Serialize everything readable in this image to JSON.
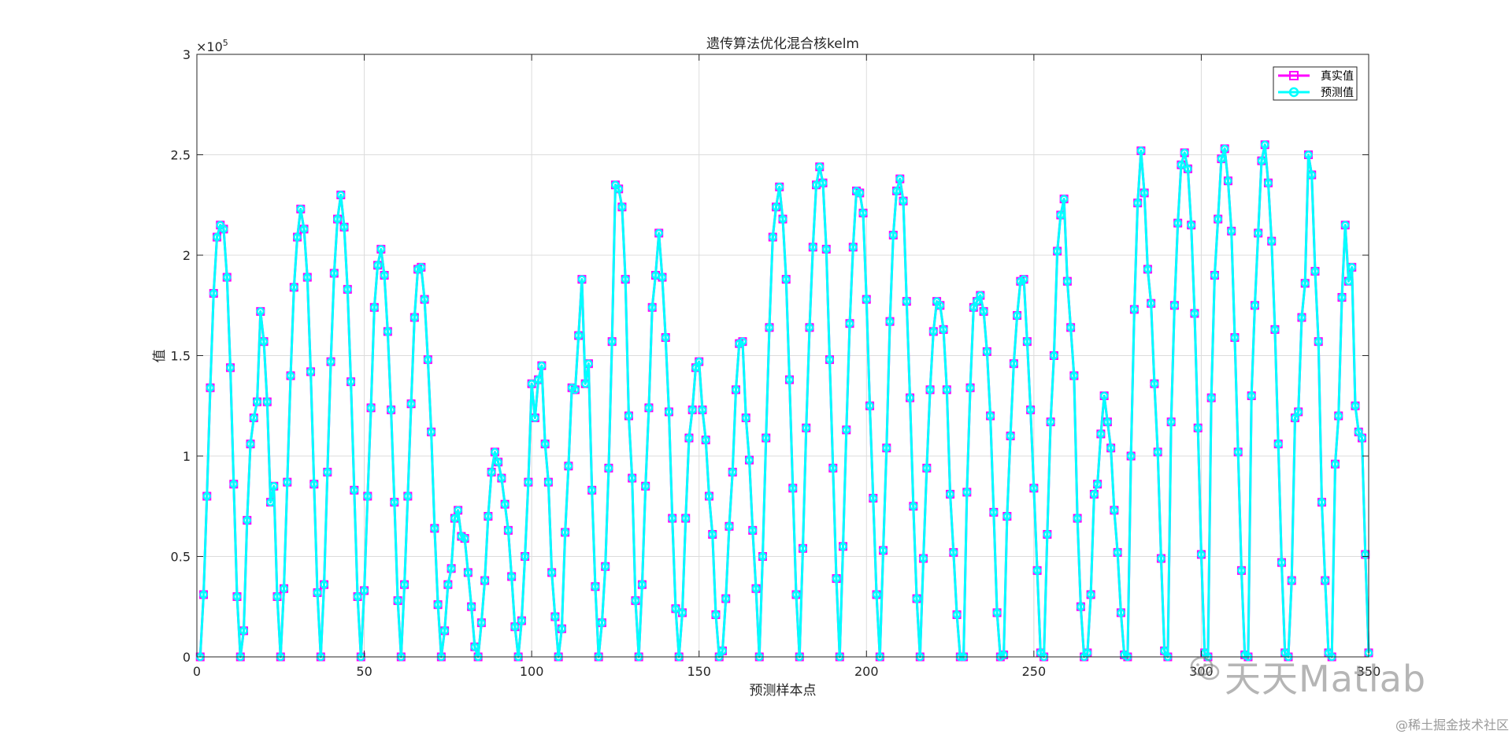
{
  "chart_data": {
    "type": "line",
    "title": "遗传算法优化混合核kelm",
    "xlabel": "预测样本点",
    "ylabel": "值",
    "y_exponent_label": "×10",
    "y_exponent_power": "5",
    "xlim": [
      0,
      350
    ],
    "ylim": [
      0,
      3
    ],
    "xticks": [
      0,
      50,
      100,
      150,
      200,
      250,
      300,
      350
    ],
    "xtick_labels": [
      "0",
      "50",
      "100",
      "150",
      "200",
      "250",
      "300",
      "350"
    ],
    "yticks": [
      0,
      0.5,
      1,
      1.5,
      2,
      2.5,
      3
    ],
    "ytick_labels": [
      "0",
      "0.5",
      "1",
      "1.5",
      "2",
      "2.5",
      "3"
    ],
    "grid": true,
    "legend_position": "top-right",
    "series": [
      {
        "name": "真实值",
        "color": "#ff00ff",
        "marker": "square"
      },
      {
        "name": "预测值",
        "color": "#00ffff",
        "marker": "circle"
      }
    ],
    "y_values": [
      0,
      0.31,
      0.8,
      1.34,
      1.81,
      2.09,
      2.15,
      2.13,
      1.89,
      1.44,
      0.86,
      0.3,
      0,
      0.13,
      0.68,
      1.06,
      1.19,
      1.27,
      1.72,
      1.57,
      1.27,
      0.77,
      0.85,
      0.3,
      0,
      0.34,
      0.87,
      1.4,
      1.84,
      2.09,
      2.23,
      2.13,
      1.89,
      1.42,
      0.86,
      0.32,
      0,
      0.36,
      0.92,
      1.47,
      1.91,
      2.18,
      2.3,
      2.14,
      1.83,
      1.37,
      0.83,
      0.3,
      0,
      0.33,
      0.8,
      1.24,
      1.74,
      1.95,
      2.03,
      1.9,
      1.62,
      1.23,
      0.77,
      0.28,
      0,
      0.36,
      0.8,
      1.26,
      1.69,
      1.93,
      1.94,
      1.78,
      1.48,
      1.12,
      0.64,
      0.26,
      0,
      0.13,
      0.36,
      0.44,
      0.69,
      0.73,
      0.6,
      0.59,
      0.42,
      0.25,
      0.05,
      0,
      0.17,
      0.38,
      0.7,
      0.92,
      1.02,
      0.97,
      0.89,
      0.76,
      0.63,
      0.4,
      0.15,
      0,
      0.18,
      0.5,
      0.87,
      1.36,
      1.19,
      1.38,
      1.45,
      1.06,
      0.87,
      0.42,
      0.2,
      0,
      0.14,
      0.62,
      0.95,
      1.34,
      1.33,
      1.6,
      1.88,
      1.36,
      1.46,
      0.83,
      0.35,
      0,
      0.17,
      0.45,
      0.94,
      1.57,
      2.35,
      2.33,
      2.24,
      1.88,
      1.2,
      0.89,
      0.28,
      0,
      0.36,
      0.85,
      1.24,
      1.74,
      1.9,
      2.11,
      1.89,
      1.59,
      1.22,
      0.69,
      0.24,
      0,
      0.22,
      0.69,
      1.09,
      1.23,
      1.44,
      1.47,
      1.23,
      1.08,
      0.8,
      0.61,
      0.21,
      0,
      0.03,
      0.29,
      0.65,
      0.92,
      1.33,
      1.56,
      1.57,
      1.19,
      0.98,
      0.63,
      0.34,
      0,
      0.5,
      1.09,
      1.64,
      2.09,
      2.24,
      2.34,
      2.18,
      1.88,
      1.38,
      0.84,
      0.31,
      0,
      0.54,
      1.14,
      1.64,
      2.04,
      2.35,
      2.44,
      2.36,
      2.03,
      1.48,
      0.94,
      0.39,
      0,
      0.55,
      1.13,
      1.66,
      2.04,
      2.32,
      2.31,
      2.21,
      1.78,
      1.25,
      0.79,
      0.31,
      0,
      0.53,
      1.04,
      1.67,
      2.1,
      2.32,
      2.38,
      2.27,
      1.77,
      1.29,
      0.75,
      0.29,
      0,
      0.49,
      0.94,
      1.33,
      1.62,
      1.77,
      1.75,
      1.63,
      1.33,
      0.81,
      0.52,
      0.21,
      0,
      0,
      0.82,
      1.34,
      1.74,
      1.77,
      1.8,
      1.72,
      1.52,
      1.2,
      0.72,
      0.22,
      0,
      0.01,
      0.7,
      1.1,
      1.46,
      1.7,
      1.87,
      1.88,
      1.57,
      1.23,
      0.84,
      0.43,
      0.02,
      0,
      0.61,
      1.17,
      1.5,
      2.02,
      2.2,
      2.28,
      1.87,
      1.64,
      1.4,
      0.69,
      0.25,
      0,
      0.02,
      0.31,
      0.81,
      0.86,
      1.11,
      1.3,
      1.17,
      1.04,
      0.73,
      0.52,
      0.22,
      0.01,
      0,
      1,
      1.73,
      2.26,
      2.52,
      2.31,
      1.93,
      1.76,
      1.36,
      1.02,
      0.49,
      0.03,
      0,
      1.17,
      1.75,
      2.16,
      2.45,
      2.51,
      2.43,
      2.15,
      1.71,
      1.14,
      0.51,
      0.02,
      0,
      1.29,
      1.9,
      2.18,
      2.48,
      2.53,
      2.37,
      2.12,
      1.59,
      1.02,
      0.43,
      0.01,
      0,
      1.3,
      1.75,
      2.11,
      2.47,
      2.55,
      2.36,
      2.07,
      1.63,
      1.06,
      0.47,
      0.02,
      0,
      0.38,
      1.19,
      1.22,
      1.69,
      1.86,
      2.5,
      2.4,
      1.92,
      1.57,
      0.77,
      0.38,
      0.02,
      0,
      0.96,
      1.2,
      1.79,
      2.15,
      1.87,
      1.94,
      1.25,
      1.12,
      1.09,
      0.51,
      0.02
    ]
  },
  "watermark": {
    "main_text": "天天Matlab",
    "corner_text": "@稀土掘金技术社区"
  }
}
